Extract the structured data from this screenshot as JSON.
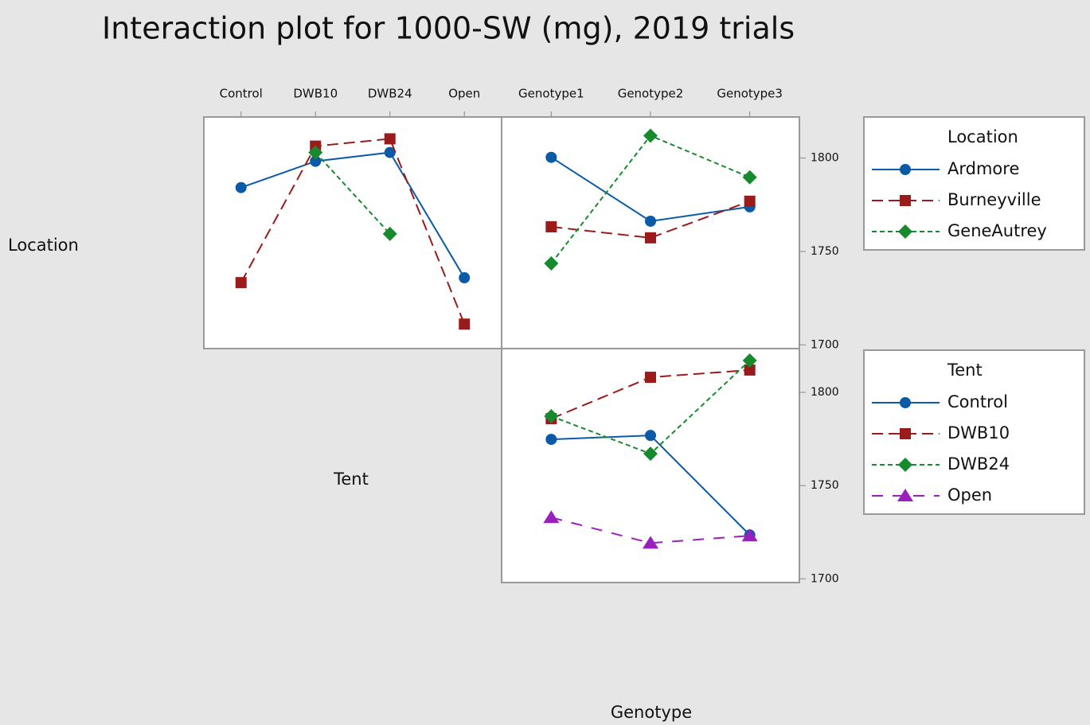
{
  "title": "Interaction plot for 1000-SW (mg), 2019 trials",
  "row_labels": [
    "Location",
    "Tent"
  ],
  "column_label": "Genotype",
  "chart_data": [
    {
      "type": "line",
      "categories": [
        "Control",
        "DWB10",
        "DWB24",
        "Open"
      ],
      "ylim": [
        1698,
        1822
      ],
      "series": [
        {
          "color": "#0b5aa8",
          "marker": "circle",
          "dash": "solid",
          "values": [
            1784.2,
            1798.3,
            1803,
            1735.9
          ]
        },
        {
          "color": "#9b1b1b",
          "marker": "square",
          "dash": "long",
          "values": [
            1733.3,
            1806.4,
            1810.3,
            1711.1
          ]
        },
        {
          "color": "#178a2e",
          "marker": "diamond",
          "dash": "short",
          "values": [
            null,
            1803,
            1759.4,
            null
          ]
        }
      ]
    },
    {
      "type": "line",
      "categories": [
        "Genotype1",
        "Genotype2",
        "Genotype3"
      ],
      "ylim": [
        1698,
        1822
      ],
      "yticks": [
        1700,
        1750,
        1800
      ],
      "legend_title": "Location",
      "series": [
        {
          "name": "Ardmore",
          "color": "#0b5aa8",
          "marker": "circle",
          "dash": "solid",
          "values": [
            1800.4,
            1766.2,
            1773.9
          ]
        },
        {
          "name": "Burneyville",
          "color": "#9b1b1b",
          "marker": "square",
          "dash": "long",
          "values": [
            1763.2,
            1757.3,
            1776.9
          ]
        },
        {
          "name": "GeneAutrey",
          "color": "#178a2e",
          "marker": "diamond",
          "dash": "short",
          "values": [
            1743.6,
            1812,
            1789.7
          ]
        }
      ]
    },
    {
      "type": "line",
      "ylim": [
        1698,
        1823.5
      ],
      "yticks": [
        1700,
        1750,
        1800
      ],
      "legend_title": "Tent",
      "series": [
        {
          "name": "Control",
          "color": "#0b5aa8",
          "marker": "circle",
          "dash": "solid",
          "values": [
            1774.8,
            1776.9,
            1723.5
          ]
        },
        {
          "name": "DWB10",
          "color": "#9b1b1b",
          "marker": "square",
          "dash": "long",
          "values": [
            1785.9,
            1808.1,
            1812
          ]
        },
        {
          "name": "DWB24",
          "color": "#178a2e",
          "marker": "diamond",
          "dash": "short",
          "values": [
            1787.2,
            1767.1,
            1817.1
          ]
        },
        {
          "name": "Open",
          "color": "#9a1fbf",
          "marker": "triangle",
          "dash": "gap",
          "values": [
            1732.9,
            1719.2,
            1723.1
          ]
        }
      ]
    }
  ]
}
